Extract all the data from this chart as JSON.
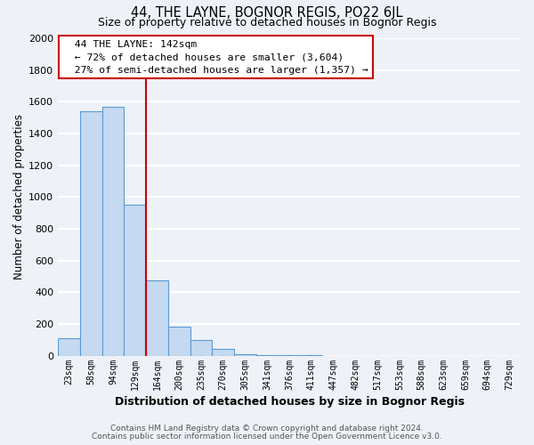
{
  "title": "44, THE LAYNE, BOGNOR REGIS, PO22 6JL",
  "subtitle": "Size of property relative to detached houses in Bognor Regis",
  "xlabel": "Distribution of detached houses by size in Bognor Regis",
  "ylabel": "Number of detached properties",
  "bar_labels": [
    "23sqm",
    "58sqm",
    "94sqm",
    "129sqm",
    "164sqm",
    "200sqm",
    "235sqm",
    "270sqm",
    "305sqm",
    "341sqm",
    "376sqm",
    "411sqm",
    "447sqm",
    "482sqm",
    "517sqm",
    "553sqm",
    "588sqm",
    "623sqm",
    "659sqm",
    "694sqm",
    "729sqm"
  ],
  "bar_values": [
    110,
    1540,
    1570,
    950,
    475,
    180,
    100,
    40,
    10,
    5,
    2,
    1,
    0,
    0,
    0,
    0,
    0,
    0,
    0,
    0,
    0
  ],
  "bar_color": "#c5d9f0",
  "bar_edge_color": "#5b9bd5",
  "vline_color": "#cc0000",
  "ylim": [
    0,
    2000
  ],
  "yticks": [
    0,
    200,
    400,
    600,
    800,
    1000,
    1200,
    1400,
    1600,
    1800,
    2000
  ],
  "annotation_title": "44 THE LAYNE: 142sqm",
  "annotation_line1": "← 72% of detached houses are smaller (3,604)",
  "annotation_line2": "27% of semi-detached houses are larger (1,357) →",
  "annotation_box_color": "#ffffff",
  "annotation_box_edge": "#cc0000",
  "footer_line1": "Contains HM Land Registry data © Crown copyright and database right 2024.",
  "footer_line2": "Contains public sector information licensed under the Open Government Licence v3.0.",
  "bg_color": "#eef2f8",
  "plot_bg_color": "#eef2f8",
  "grid_color": "#ffffff"
}
